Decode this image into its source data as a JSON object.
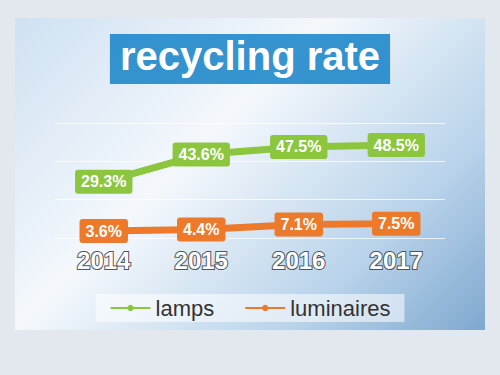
{
  "chart_data": {
    "type": "line",
    "title": "recycling rate",
    "categories": [
      "2014",
      "2015",
      "2016",
      "2017"
    ],
    "series": [
      {
        "name": "lamps",
        "color": "#8cc63f",
        "values": [
          29.3,
          43.6,
          47.5,
          48.5
        ],
        "value_labels": [
          "29.3%",
          "43.6%",
          "47.5%",
          "48.5%"
        ]
      },
      {
        "name": "luminaires",
        "color": "#ec7a2a",
        "values": [
          3.6,
          4.4,
          7.1,
          7.5
        ],
        "value_labels": [
          "3.6%",
          "4.4%",
          "7.1%",
          "7.5%"
        ]
      }
    ],
    "ylim": [
      0,
      60
    ],
    "yticks": [
      0,
      20,
      40,
      60
    ],
    "grid": true,
    "data_labels": true,
    "legend": "bottom",
    "tick_labels": "x"
  }
}
